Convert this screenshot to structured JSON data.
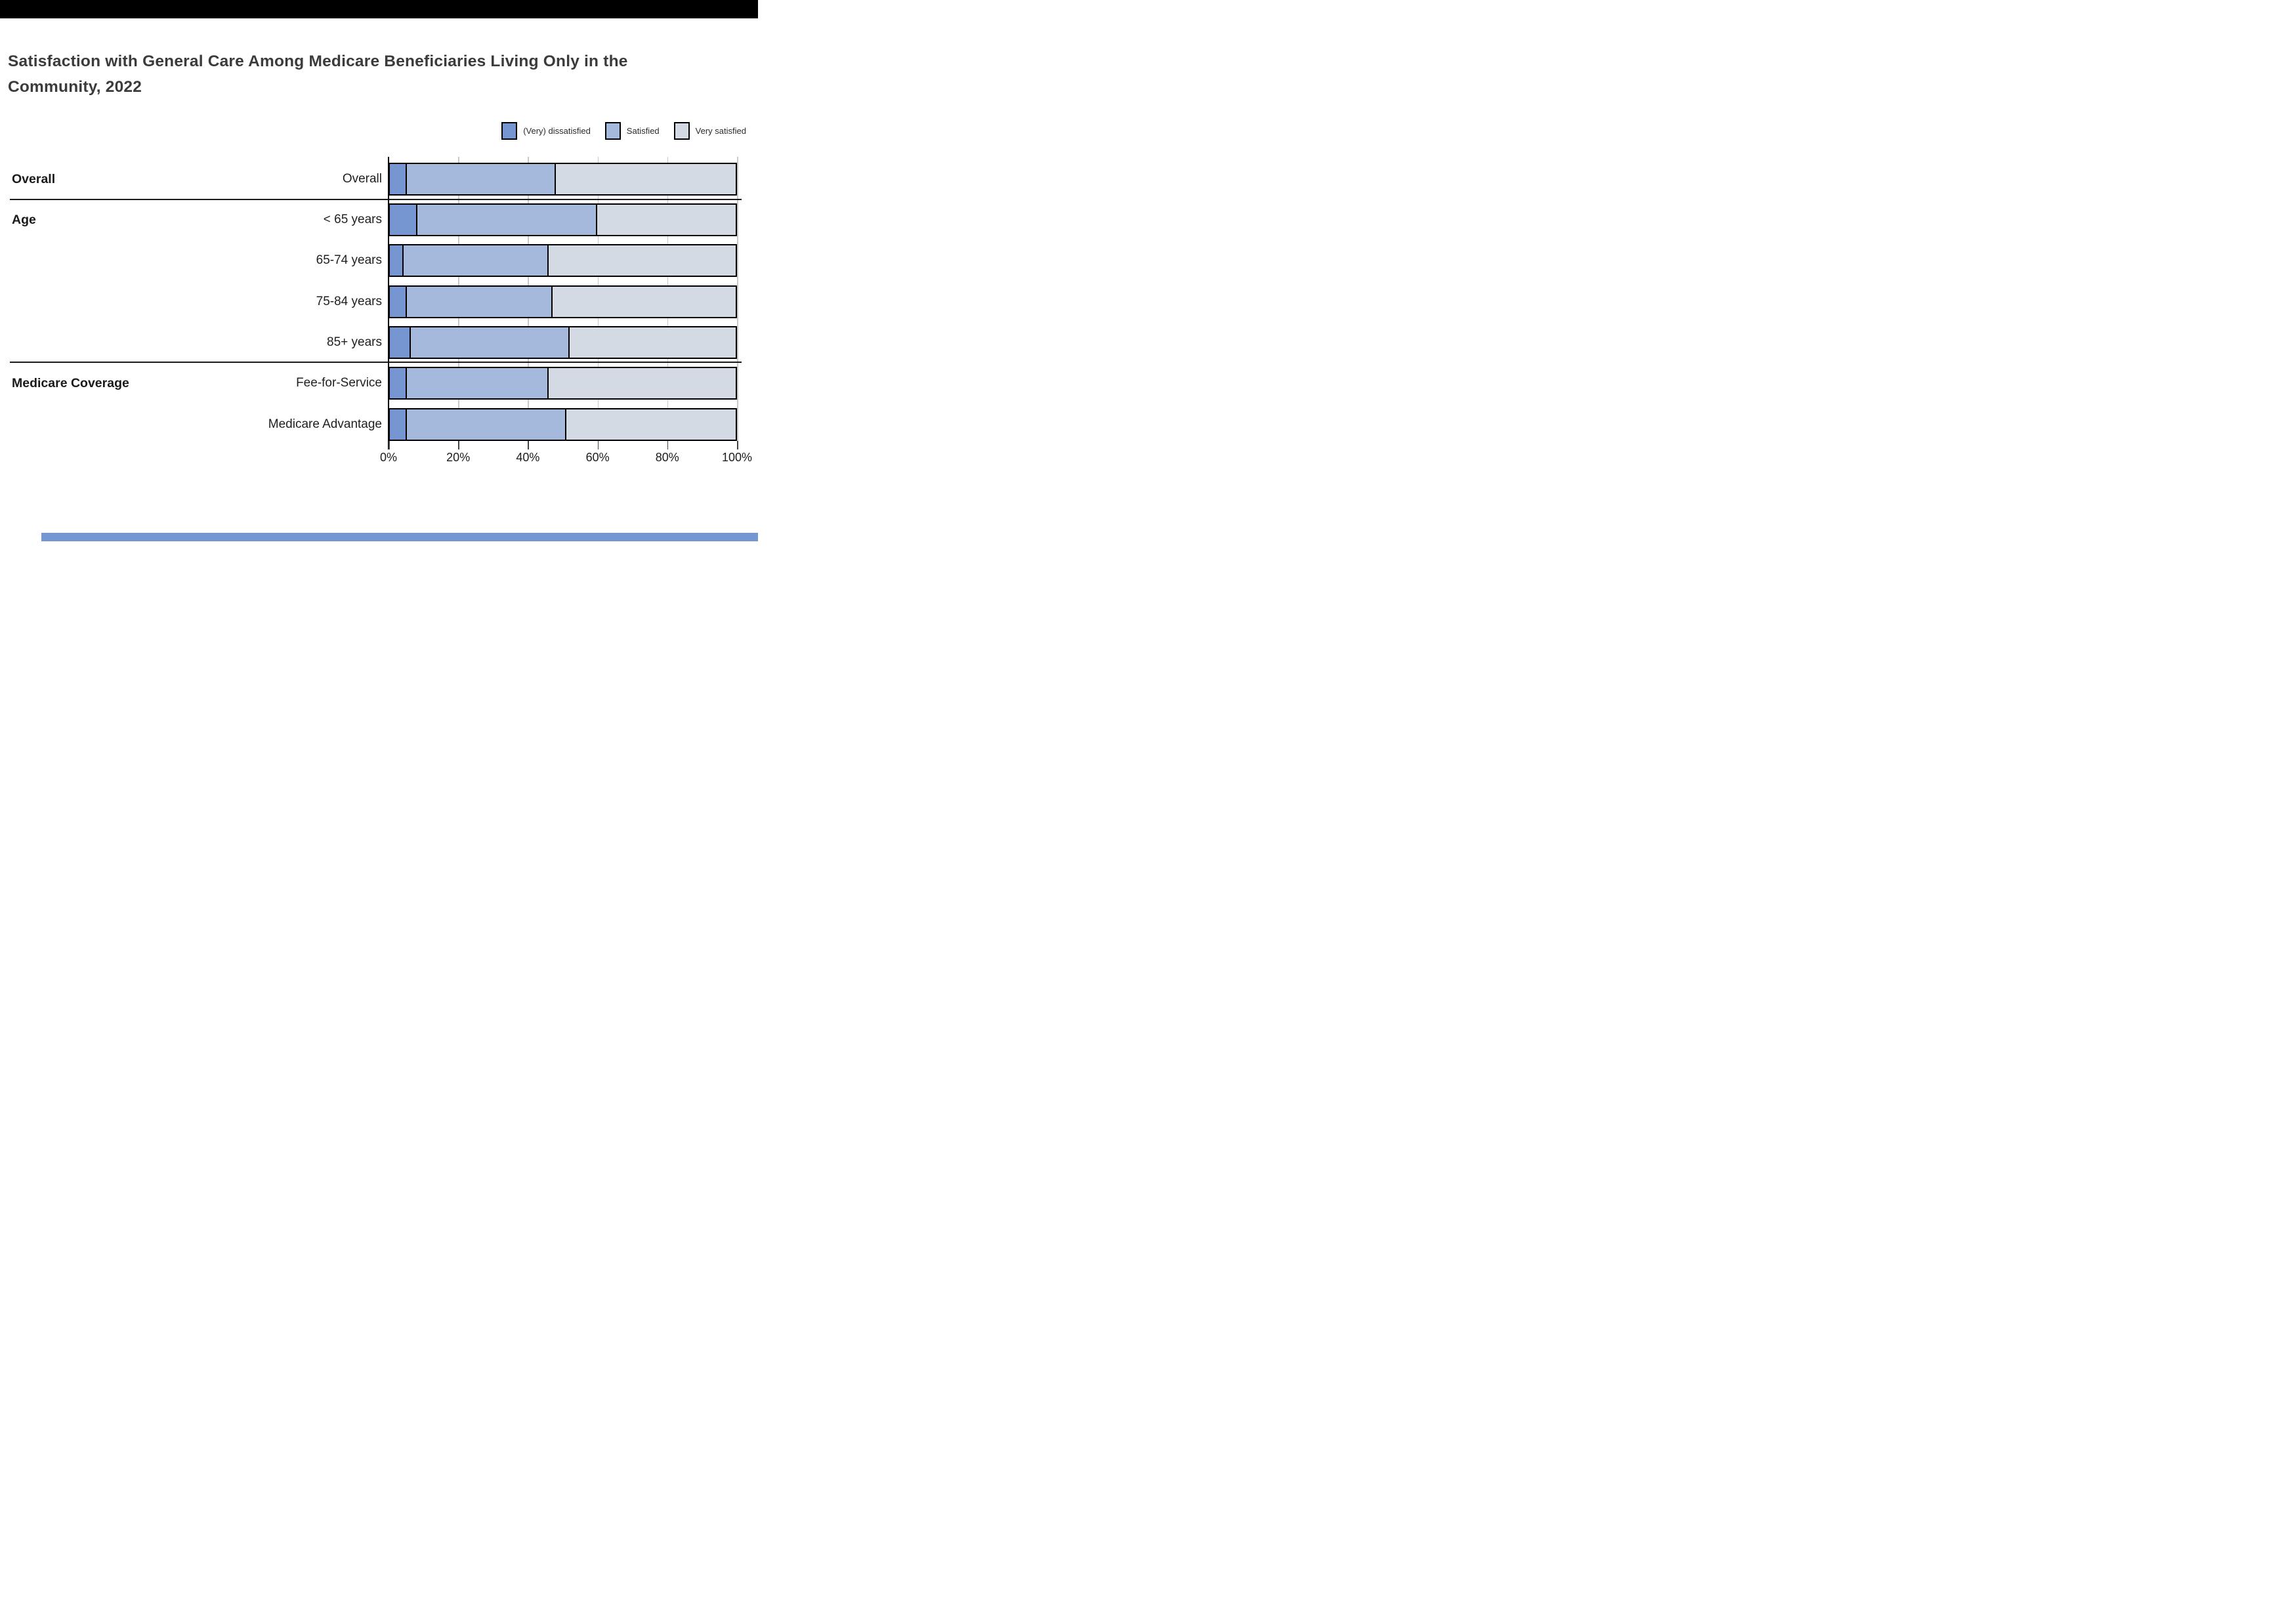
{
  "chart_data": {
    "type": "bar",
    "orientation": "horizontal",
    "stacked": true,
    "title": "Satisfaction with General Care Among Medicare Beneficiaries Living Only in the Community, 2022",
    "categories": [
      "Overall",
      "< 65 years",
      "65-74 years",
      "75-84 years",
      "85+ years",
      "Fee-for-Service",
      "Medicare Advantage"
    ],
    "groups": [
      {
        "label": "Overall",
        "rows": [
          0
        ]
      },
      {
        "label": "Age",
        "rows": [
          1,
          2,
          3,
          4
        ]
      },
      {
        "label": "Medicare Coverage",
        "rows": [
          5,
          6
        ]
      }
    ],
    "series": [
      {
        "name": "(Very) dissatisfied",
        "color": "#7596d0",
        "values": [
          5,
          8,
          4,
          5,
          6,
          5,
          5
        ]
      },
      {
        "name": "Satisfied",
        "color": "#a4b9dc",
        "values": [
          43,
          52,
          42,
          42,
          46,
          41,
          46
        ]
      },
      {
        "name": "Very satisfied",
        "color": "#d4dae3",
        "values": [
          52,
          40,
          54,
          53,
          48,
          54,
          49
        ]
      }
    ],
    "x_ticks": [
      "0%",
      "20%",
      "40%",
      "60%",
      "80%",
      "100%"
    ],
    "xlim": [
      0,
      100
    ],
    "xlabel": "",
    "ylabel": "",
    "grid": true,
    "legend_position": "top-right",
    "bar_border_color": "#000000",
    "gridline_color": "#c9c9c9"
  }
}
